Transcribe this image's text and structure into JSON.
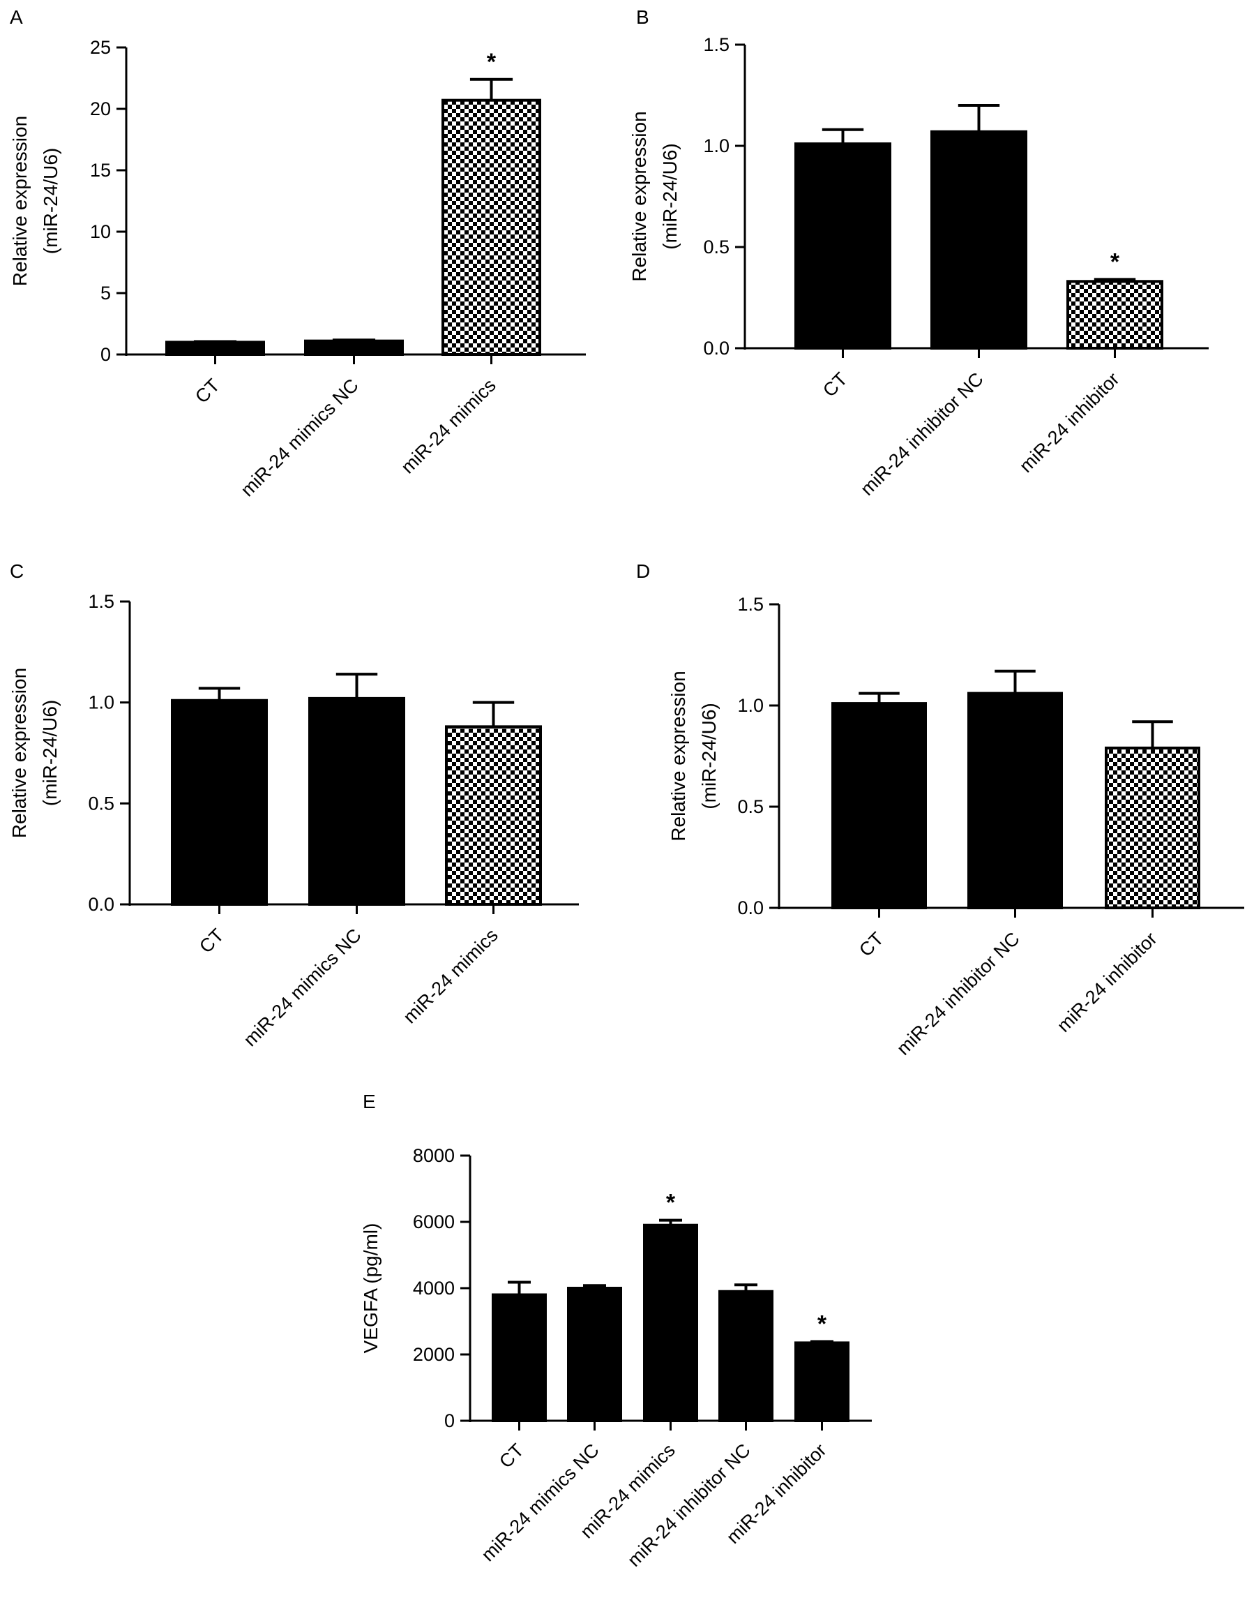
{
  "chart_data": [
    {
      "panel": "A",
      "type": "bar",
      "categories": [
        "CT",
        "miR-24 mimics NC",
        "miR-24 mimics"
      ],
      "values": [
        1.0,
        1.1,
        20.7
      ],
      "errors": [
        0.05,
        0.08,
        1.7
      ],
      "significant": [
        false,
        false,
        true
      ],
      "fills": [
        "solid",
        "solid",
        "checker"
      ],
      "ylabel_lines": [
        "Relative expression",
        "(miR-24/U6)"
      ],
      "yticks": [
        "0",
        "5",
        "10",
        "15",
        "20",
        "25"
      ],
      "ylim": [
        0,
        25
      ],
      "star": "*",
      "grid": false,
      "legend": "none"
    },
    {
      "panel": "B",
      "type": "bar",
      "categories": [
        "CT",
        "miR-24 inhibitor NC",
        "miR-24 inhibitor"
      ],
      "values": [
        1.01,
        1.07,
        0.33
      ],
      "errors": [
        0.07,
        0.13,
        0.01
      ],
      "significant": [
        false,
        false,
        true
      ],
      "fills": [
        "solid",
        "solid",
        "checker"
      ],
      "ylabel_lines": [
        "Relative expression",
        "(miR-24/U6)"
      ],
      "yticks": [
        "0.0",
        "0.5",
        "1.0",
        "1.5"
      ],
      "ylim": [
        0,
        1.5
      ],
      "star": "*",
      "grid": false,
      "legend": "none"
    },
    {
      "panel": "C",
      "type": "bar",
      "categories": [
        "CT",
        "miR-24 mimics NC",
        "miR-24 mimics"
      ],
      "values": [
        1.01,
        1.02,
        0.88
      ],
      "errors": [
        0.06,
        0.12,
        0.12
      ],
      "significant": [
        false,
        false,
        false
      ],
      "fills": [
        "solid",
        "solid",
        "checker"
      ],
      "ylabel_lines": [
        "Relative expression",
        "(miR-24/U6)"
      ],
      "yticks": [
        "0.0",
        "0.5",
        "1.0",
        "1.5"
      ],
      "ylim": [
        0,
        1.5
      ],
      "star": "*",
      "grid": false,
      "legend": "none"
    },
    {
      "panel": "D",
      "type": "bar",
      "categories": [
        "CT",
        "miR-24 inhibitor NC",
        "miR-24 inhibitor"
      ],
      "values": [
        1.01,
        1.06,
        0.79
      ],
      "errors": [
        0.05,
        0.11,
        0.13
      ],
      "significant": [
        false,
        false,
        false
      ],
      "fills": [
        "solid",
        "solid",
        "checker"
      ],
      "ylabel_lines": [
        "Relative expression",
        "(miR-24/U6)"
      ],
      "yticks": [
        "0.0",
        "0.5",
        "1.0",
        "1.5"
      ],
      "ylim": [
        0,
        1.5
      ],
      "star": "*",
      "grid": false,
      "legend": "none"
    },
    {
      "panel": "E",
      "type": "bar",
      "categories": [
        "CT",
        "miR-24 mimics NC",
        "miR-24 mimics",
        "miR-24 inhibitor NC",
        "miR-24 inhibitor"
      ],
      "values": [
        3800,
        4000,
        5900,
        3900,
        2350
      ],
      "errors": [
        380,
        80,
        150,
        200,
        40
      ],
      "significant": [
        false,
        false,
        true,
        false,
        true
      ],
      "fills": [
        "solid",
        "solid",
        "solid",
        "solid",
        "solid"
      ],
      "ylabel_lines": [
        "VEGFA (pg/ml)"
      ],
      "yticks": [
        "0",
        "2000",
        "4000",
        "6000",
        "8000"
      ],
      "ylim": [
        0,
        8000
      ],
      "star": "*",
      "grid": false,
      "legend": "none"
    }
  ]
}
